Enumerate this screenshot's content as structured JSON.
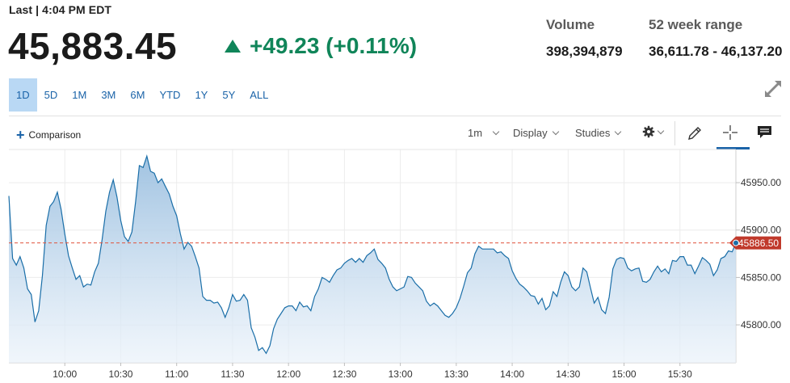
{
  "header": {
    "last_label": "Last | 4:04 PM EDT",
    "price": "45,883.45",
    "change": "+49.23 (+0.11%)",
    "change_direction": "up",
    "up_color": "#108559",
    "stats": [
      {
        "label": "Volume",
        "value": "398,394,879"
      },
      {
        "label": "52 week range",
        "value": "36,611.78 - 46,137.20"
      }
    ]
  },
  "range_tabs": [
    {
      "label": "1D",
      "active": true
    },
    {
      "label": "5D",
      "active": false
    },
    {
      "label": "1M",
      "active": false
    },
    {
      "label": "3M",
      "active": false
    },
    {
      "label": "6M",
      "active": false
    },
    {
      "label": "YTD",
      "active": false
    },
    {
      "label": "1Y",
      "active": false
    },
    {
      "label": "5Y",
      "active": false
    },
    {
      "label": "ALL",
      "active": false
    }
  ],
  "toolbar": {
    "comparison_label": "Comparison",
    "interval_label": "1m",
    "display_label": "Display",
    "studies_label": "Studies",
    "icons": [
      "expand-icon",
      "plus-icon",
      "gear-icon",
      "pencil-icon",
      "crosshair-icon",
      "comment-icon"
    ]
  },
  "chart_data": {
    "type": "area",
    "x_ticks": [
      "10:00",
      "10:30",
      "11:00",
      "11:30",
      "12:00",
      "12:30",
      "13:00",
      "13:30",
      "14:00",
      "14:30",
      "15:00",
      "15:30"
    ],
    "y_ticks": [
      "45950.00",
      "45900.00",
      "45850.00",
      "45800.00"
    ],
    "ylim": [
      45760,
      45985
    ],
    "xlim": [
      "09:30",
      "16:00"
    ],
    "last_price_label": "45886.50",
    "last_price": 45886.5,
    "line_color": "#1a6ea8",
    "reference_line_color": "#e0533d",
    "marker_color": "#c0392b",
    "grid": true,
    "x": [
      "09:30",
      "09:32",
      "09:34",
      "09:36",
      "09:38",
      "09:40",
      "09:42",
      "09:44",
      "09:46",
      "09:48",
      "09:50",
      "09:52",
      "09:54",
      "09:56",
      "09:58",
      "10:00",
      "10:02",
      "10:04",
      "10:06",
      "10:08",
      "10:10",
      "10:12",
      "10:14",
      "10:16",
      "10:18",
      "10:20",
      "10:22",
      "10:24",
      "10:26",
      "10:28",
      "10:30",
      "10:32",
      "10:34",
      "10:36",
      "10:38",
      "10:40",
      "10:42",
      "10:44",
      "10:46",
      "10:48",
      "10:50",
      "10:52",
      "10:54",
      "10:56",
      "10:58",
      "11:00",
      "11:02",
      "11:04",
      "11:06",
      "11:08",
      "11:10",
      "11:12",
      "11:14",
      "11:16",
      "11:18",
      "11:20",
      "11:22",
      "11:24",
      "11:26",
      "11:28",
      "11:30",
      "11:32",
      "11:34",
      "11:36",
      "11:38",
      "11:40",
      "11:42",
      "11:44",
      "11:46",
      "11:48",
      "11:50",
      "11:52",
      "11:54",
      "11:56",
      "11:58",
      "12:00",
      "12:02",
      "12:04",
      "12:06",
      "12:08",
      "12:10",
      "12:12",
      "12:14",
      "12:16",
      "12:18",
      "12:20",
      "12:22",
      "12:24",
      "12:26",
      "12:28",
      "12:30",
      "12:32",
      "12:34",
      "12:36",
      "12:38",
      "12:40",
      "12:42",
      "12:44",
      "12:46",
      "12:48",
      "12:50",
      "12:52",
      "12:54",
      "12:56",
      "12:58",
      "13:00",
      "13:02",
      "13:04",
      "13:06",
      "13:08",
      "13:10",
      "13:12",
      "13:14",
      "13:16",
      "13:18",
      "13:20",
      "13:22",
      "13:24",
      "13:26",
      "13:28",
      "13:30",
      "13:32",
      "13:34",
      "13:36",
      "13:38",
      "13:40",
      "13:42",
      "13:44",
      "13:46",
      "13:48",
      "13:50",
      "13:52",
      "13:54",
      "13:56",
      "13:58",
      "14:00",
      "14:02",
      "14:04",
      "14:06",
      "14:08",
      "14:10",
      "14:12",
      "14:14",
      "14:16",
      "14:18",
      "14:20",
      "14:22",
      "14:24",
      "14:26",
      "14:28",
      "14:30",
      "14:32",
      "14:34",
      "14:36",
      "14:38",
      "14:40",
      "14:42",
      "14:44",
      "14:46",
      "14:48",
      "14:50",
      "14:52",
      "14:54",
      "14:56",
      "14:58",
      "15:00",
      "15:02",
      "15:04",
      "15:06",
      "15:08",
      "15:10",
      "15:12",
      "15:14",
      "15:16",
      "15:18",
      "15:20",
      "15:22",
      "15:24",
      "15:26",
      "15:28",
      "15:30",
      "15:32",
      "15:34",
      "15:36",
      "15:38",
      "15:40",
      "15:42",
      "15:44",
      "15:46",
      "15:48",
      "15:50",
      "15:52",
      "15:54",
      "15:56",
      "15:58",
      "16:00"
    ],
    "values": [
      45936,
      45870,
      45863,
      45872,
      45860,
      45838,
      45832,
      45803,
      45815,
      45852,
      45905,
      45925,
      45930,
      45940,
      45922,
      45896,
      45873,
      45860,
      45848,
      45852,
      45840,
      45843,
      45842,
      45856,
      45865,
      45890,
      45920,
      45940,
      45953,
      45935,
      45910,
      45893,
      45888,
      45898,
      45930,
      45968,
      45966,
      45978,
      45962,
      45960,
      45950,
      45954,
      45946,
      45938,
      45925,
      45915,
      45896,
      45880,
      45887,
      45883,
      45872,
      45860,
      45830,
      45826,
      45826,
      45823,
      45824,
      45818,
      45808,
      45818,
      45832,
      45825,
      45826,
      45832,
      45826,
      45797,
      45787,
      45773,
      45776,
      45770,
      45778,
      45796,
      45806,
      45812,
      45818,
      45820,
      45820,
      45815,
      45824,
      45819,
      45820,
      45815,
      45830,
      45838,
      45850,
      45848,
      45845,
      45852,
      45858,
      45860,
      45865,
      45868,
      45870,
      45866,
      45870,
      45866,
      45873,
      45876,
      45880,
      45869,
      45865,
      45860,
      45848,
      45840,
      45836,
      45838,
      45840,
      45851,
      45850,
      45844,
      45840,
      45836,
      45825,
      45820,
      45823,
      45820,
      45815,
      45810,
      45808,
      45812,
      45818,
      45828,
      45841,
      45855,
      45860,
      45875,
      45883,
      45880,
      45880,
      45880,
      45880,
      45876,
      45877,
      45873,
      45870,
      45857,
      45849,
      45843,
      45840,
      45836,
      45831,
      45830,
      45822,
      45828,
      45816,
      45820,
      45835,
      45830,
      45845,
      45856,
      45852,
      45840,
      45836,
      45840,
      45860,
      45856,
      45839,
      45823,
      45829,
      45816,
      45812,
      45829,
      45859,
      45869,
      45871,
      45870,
      45860,
      45857,
      45859,
      45860,
      45846,
      45845,
      45848,
      45856,
      45862,
      45856,
      45859,
      45854,
      45868,
      45867,
      45872,
      45872,
      45863,
      45863,
      45854,
      45862,
      45871,
      45868,
      45864,
      45852,
      45858,
      45870,
      45872,
      45878,
      45877,
      45886.5
    ]
  }
}
